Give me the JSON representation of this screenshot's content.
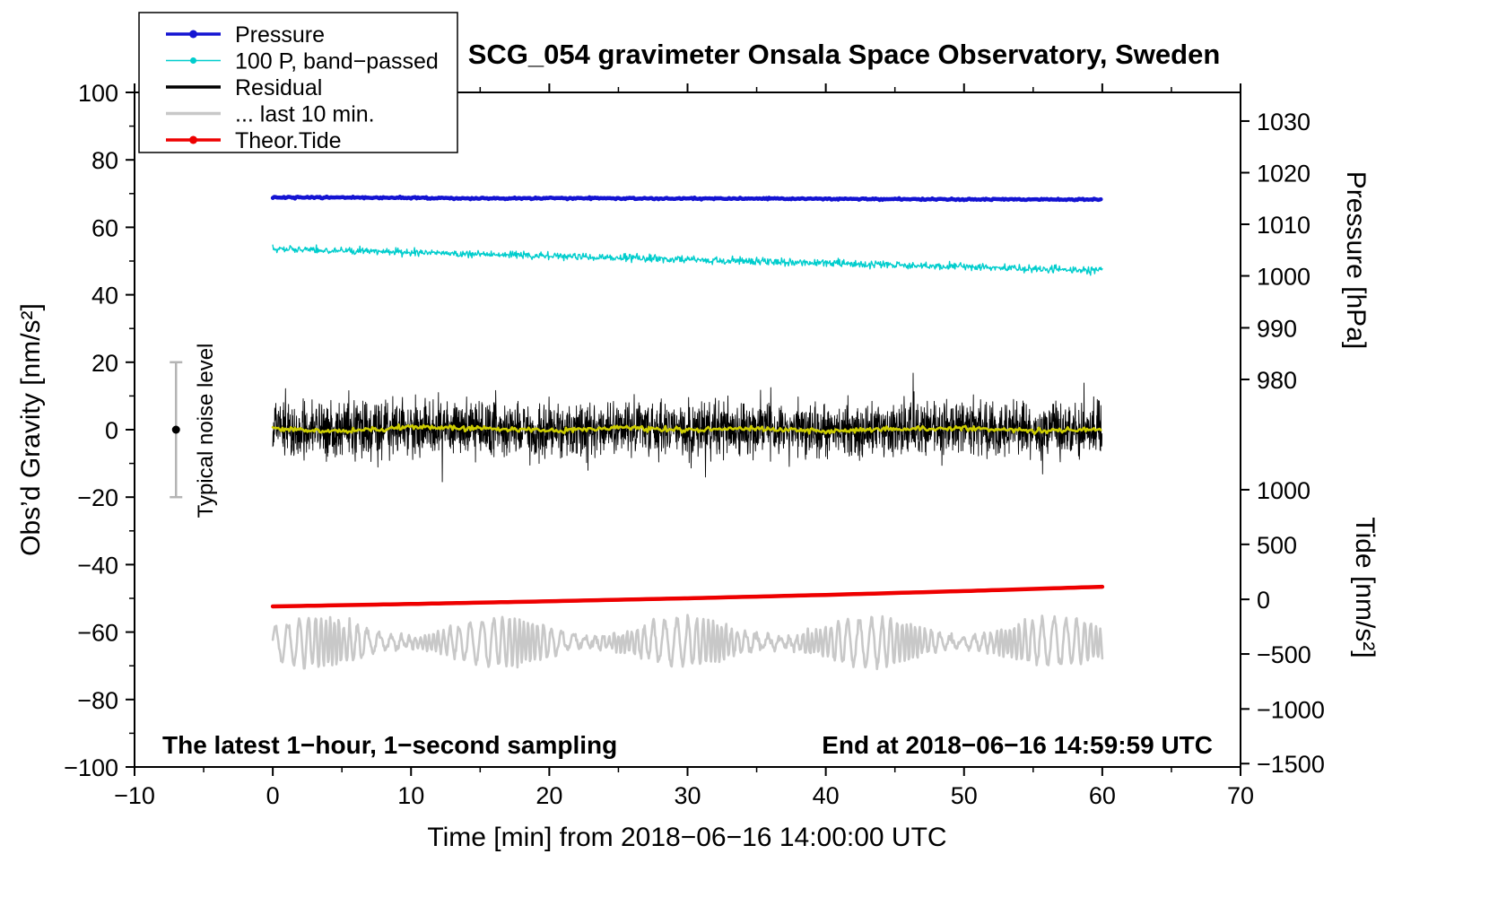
{
  "figure": {
    "background": "#ffffff"
  },
  "chart_data": {
    "type": "line",
    "title": "SCG_054 gravimeter Onsala Space Observatory, Sweden",
    "xlabel": "Time [min] from 2018−06−16 14:00:00 UTC",
    "ylabel_left": "Obs’d Gravity [nm/s²]",
    "ylabel_pressure": "Pressure [hPa]",
    "ylabel_tide": "Tide [nm/s²]",
    "xlim": [
      -10,
      70
    ],
    "ylim_gravity": [
      -100,
      100
    ],
    "x_ticks": [
      -10,
      0,
      10,
      20,
      30,
      40,
      50,
      60,
      70
    ],
    "gravity_ticks": [
      100,
      80,
      60,
      40,
      20,
      0,
      -20,
      -40,
      -60,
      -80,
      -100
    ],
    "pressure_ticks": [
      {
        "hpa": 1030,
        "gravity": 91.5
      },
      {
        "hpa": 1020,
        "gravity": 76.2
      },
      {
        "hpa": 1010,
        "gravity": 60.9
      },
      {
        "hpa": 1000,
        "gravity": 45.6
      },
      {
        "hpa": 990,
        "gravity": 30.2
      },
      {
        "hpa": 980,
        "gravity": 14.9
      }
    ],
    "tide_ticks": [
      {
        "tide": 1000,
        "gravity": -17.8
      },
      {
        "tide": 500,
        "gravity": -34.0
      },
      {
        "tide": 0,
        "gravity": -50.3
      },
      {
        "tide": -500,
        "gravity": -66.5
      },
      {
        "tide": -1000,
        "gravity": -82.8
      },
      {
        "tide": -1500,
        "gravity": -99.0
      }
    ],
    "annotations": {
      "sampling_note": "The latest 1−hour, 1−second sampling",
      "end_time_note": "End at 2018−06−16 14:59:59 UTC",
      "noise_label": "Typical noise level",
      "noise_bar": {
        "x": -7,
        "center": 0,
        "half_range": 20
      }
    },
    "colors": {
      "errorbar": "#b4b4b4",
      "frame": "#000000"
    },
    "legend": [
      {
        "label": "Pressure",
        "color": "#1414d2",
        "width": 3.5,
        "marker_r": 4.5
      },
      {
        "label": "100 P, band−passed",
        "color": "#00cdcd",
        "width": 1.5,
        "marker_r": 3.5
      },
      {
        "label": "Residual",
        "color": "#000000",
        "width": 3.5,
        "marker_r": 0
      },
      {
        "label": "... last 10 min.",
        "color": "#c8c8c8",
        "width": 3.5,
        "marker_r": 0
      },
      {
        "label": "Theor.Tide",
        "color": "#ee0000",
        "width": 3.5,
        "marker_r": 4.5
      }
    ],
    "series": {
      "pressure": {
        "name": "Pressure",
        "axis": "pressure_hPa",
        "color": "#1414d2",
        "x": [
          0,
          5,
          10,
          15,
          20,
          25,
          30,
          35,
          40,
          45,
          50,
          55,
          60
        ],
        "hpa": [
          1015.2,
          1015.2,
          1015.15,
          1015.0,
          1015.1,
          1015.05,
          1015.0,
          1015.0,
          1014.95,
          1014.9,
          1014.85,
          1014.85,
          1014.8
        ],
        "noise": 0.12
      },
      "band_passed": {
        "name": "100 P, band−passed",
        "axis": "gravity",
        "color": "#00cdcd",
        "x": [
          0,
          5,
          10,
          15,
          20,
          25,
          30,
          35,
          40,
          45,
          50,
          55,
          60
        ],
        "y": [
          53.6,
          53.1,
          52.6,
          52.0,
          51.5,
          51.0,
          50.4,
          49.9,
          49.4,
          48.8,
          48.3,
          47.7,
          47.2
        ],
        "noise": 0.55
      },
      "residual": {
        "name": "Residual",
        "axis": "gravity",
        "color": "#000000",
        "x_range": [
          0,
          60
        ],
        "mean": 0,
        "noise": 4.0,
        "spike_chance": 0.02,
        "spike_scale": 2.0
      },
      "residual_smoothed": {
        "name": "Residual smoothed",
        "axis": "gravity",
        "color": "#cdcd00",
        "x": [
          0,
          5,
          10,
          15,
          20,
          25,
          30,
          35,
          40,
          45,
          50,
          55,
          60
        ],
        "y": [
          0.4,
          -0.5,
          0.7,
          0.3,
          -0.4,
          0.6,
          -0.2,
          0.4,
          -0.5,
          0.2,
          0.5,
          -0.3,
          0.1
        ],
        "noise": 0.35
      },
      "last_10_min": {
        "name": "... last 10 min.",
        "axis": "gravity",
        "color": "#c8c8c8",
        "x_range": [
          0,
          60
        ],
        "center": -63,
        "amplitude": 5.5,
        "period_min": 0.75,
        "noise": 0.6
      },
      "theor_tide": {
        "name": "Theor.Tide",
        "axis": "tide",
        "color": "#ee0000",
        "x": [
          0,
          10,
          20,
          30,
          40,
          50,
          60
        ],
        "tide": [
          -65,
          -43,
          -18,
          9,
          40,
          75,
          114
        ]
      }
    }
  }
}
